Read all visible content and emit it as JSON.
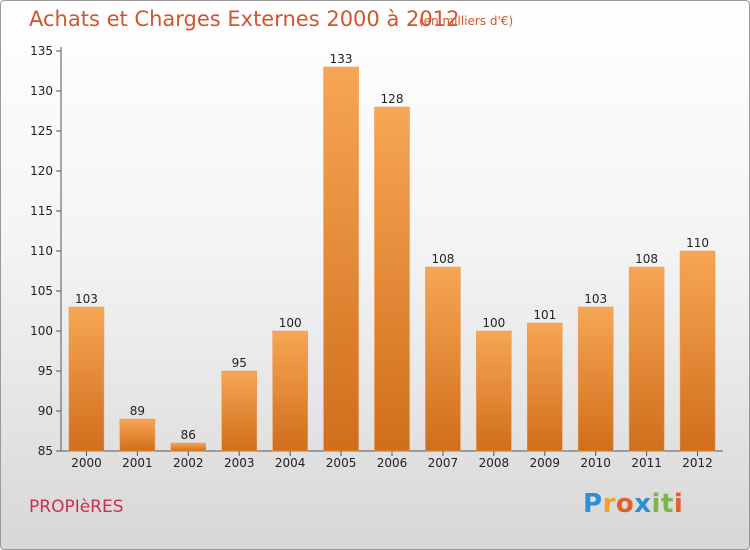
{
  "title": "Achats et Charges Externes 2000 à 2012",
  "subtitle": "(en milliers d'€)",
  "commune": "PROPIèRES",
  "logo": {
    "letters": [
      "P",
      "r",
      "o",
      "x",
      "i",
      "t",
      "i"
    ],
    "colors": [
      "#2e8fd6",
      "#f0a22a",
      "#e85c2a",
      "#2e8fd6",
      "#7ab648",
      "#7ab648",
      "#e85c2a"
    ]
  },
  "colors": {
    "bar_top": "#f7a654",
    "bar_bottom": "#d06e1c",
    "title": "#d0562e",
    "commune": "#c8304e"
  },
  "chart_data": {
    "type": "bar",
    "title": "Achats et Charges Externes 2000 à 2012",
    "subtitle": "(en milliers d'€)",
    "categories": [
      "2000",
      "2001",
      "2002",
      "2003",
      "2004",
      "2005",
      "2006",
      "2007",
      "2008",
      "2009",
      "2010",
      "2011",
      "2012"
    ],
    "values": [
      103,
      89,
      86,
      95,
      100,
      133,
      128,
      108,
      100,
      101,
      103,
      108,
      110
    ],
    "ylim": [
      85,
      135
    ],
    "yticks": [
      85,
      90,
      95,
      100,
      105,
      110,
      115,
      120,
      125,
      130,
      135
    ],
    "grid": false,
    "legend": "none"
  }
}
